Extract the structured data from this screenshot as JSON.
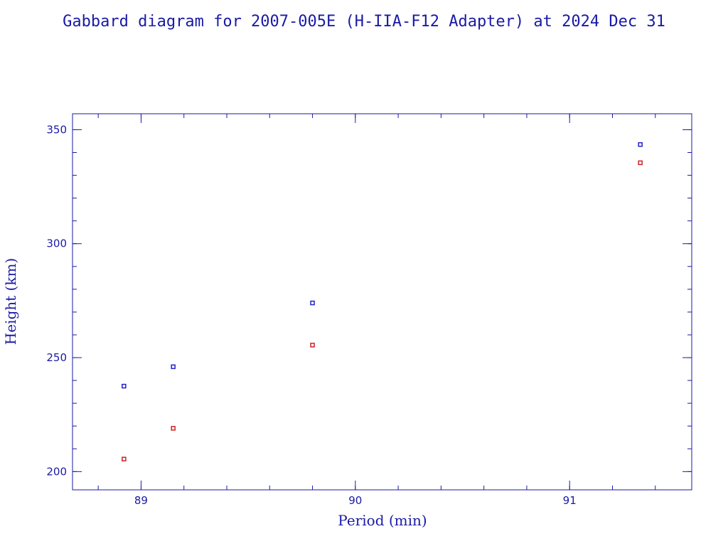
{
  "chart_data": {
    "type": "scatter",
    "title": "Gabbard diagram for 2007-005E (H-IIA-F12 Adapter) at 2024 Dec 31",
    "xlabel": "Period (min)",
    "ylabel": "Height (km)",
    "xlim": [
      88.68,
      91.57
    ],
    "ylim": [
      192,
      357
    ],
    "x_ticks_major": [
      89,
      90,
      91
    ],
    "x_tick_labels": [
      "89",
      "90",
      "91"
    ],
    "x_minor_step": 0.2,
    "y_ticks_major": [
      200,
      250,
      300,
      350
    ],
    "y_tick_labels": [
      "200",
      "250",
      "300",
      "350"
    ],
    "y_minor_step": 10,
    "grid": false,
    "legend": "none",
    "series": [
      {
        "color": "#2222cc",
        "points": [
          {
            "x": 88.92,
            "y": 237.5
          },
          {
            "x": 89.15,
            "y": 246
          },
          {
            "x": 89.8,
            "y": 274
          },
          {
            "x": 91.33,
            "y": 343.5
          }
        ]
      },
      {
        "color": "#cc2222",
        "points": [
          {
            "x": 88.92,
            "y": 205.5
          },
          {
            "x": 89.15,
            "y": 219
          },
          {
            "x": 89.8,
            "y": 255.5
          },
          {
            "x": 91.33,
            "y": 335.5
          }
        ]
      }
    ]
  }
}
